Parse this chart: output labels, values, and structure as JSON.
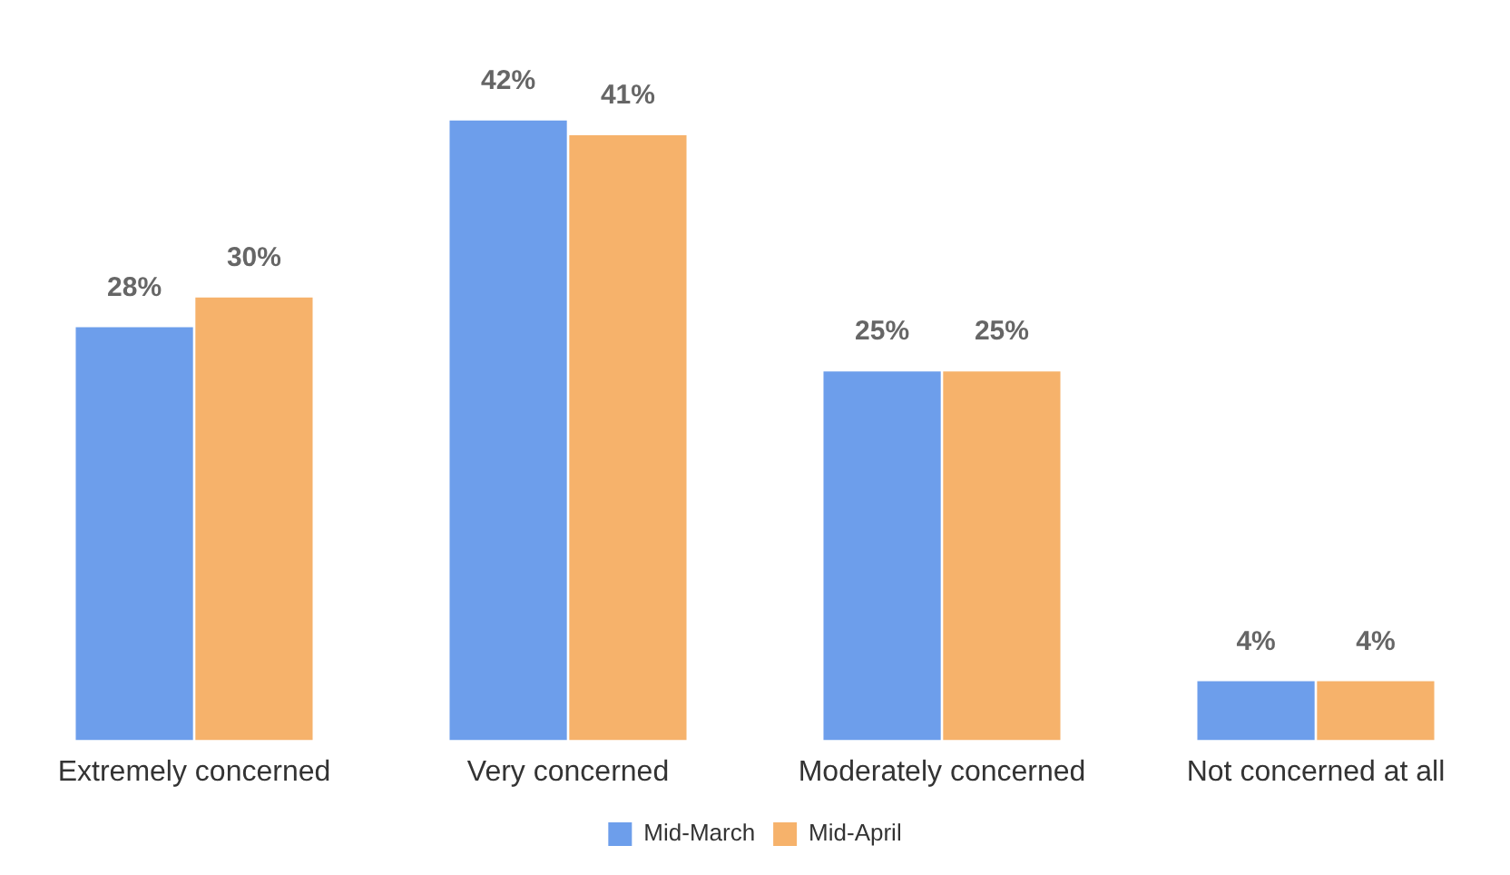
{
  "chart_data": {
    "type": "bar",
    "categories": [
      "Extremely concerned",
      "Very concerned",
      "Moderately concerned",
      "Not concerned at all"
    ],
    "series": [
      {
        "name": "Mid-March",
        "color": "#6d9eeb",
        "values": [
          28,
          42,
          25,
          4
        ],
        "value_labels": [
          "28%",
          "42%",
          "25%",
          "4%"
        ]
      },
      {
        "name": "Mid-April",
        "color": "#f6b26b",
        "values": [
          30,
          41,
          25,
          4
        ],
        "value_labels": [
          "30%",
          "41%",
          "25%",
          "4%"
        ]
      }
    ],
    "legend": "bottom",
    "grid": false
  }
}
